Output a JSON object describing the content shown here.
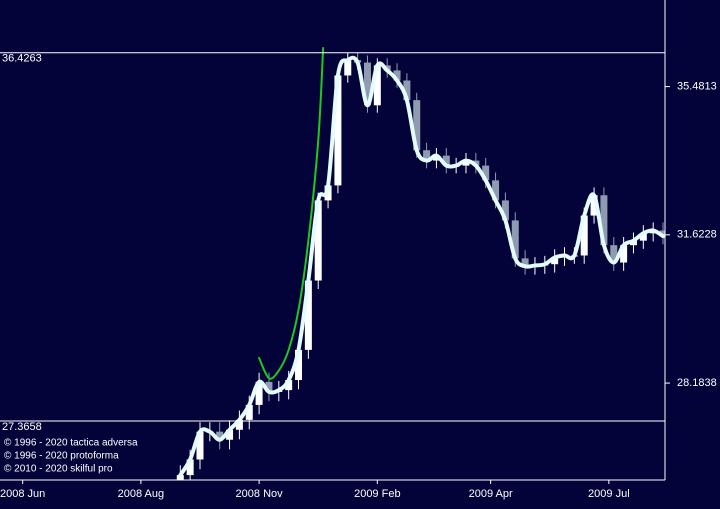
{
  "chart_data": {
    "type": "candlestick",
    "log_scale": true,
    "background": "#03033a",
    "up_color": "#ffffff",
    "down_color": "#8f9bb0",
    "ylim": [
      26.14,
      37.95
    ],
    "yticks": [
      35.4813,
      31.6228,
      28.1838
    ],
    "levels": [
      36.4263,
      27.3658
    ],
    "xlim": [
      -18.3,
      49.2
    ],
    "xticks": [
      {
        "value": -16,
        "label": "2008 Jun"
      },
      {
        "value": -4,
        "label": "2008 Aug"
      },
      {
        "value": 8,
        "label": "2008 Nov"
      },
      {
        "value": 20,
        "label": "2009 Feb"
      },
      {
        "value": 31.5,
        "label": "2009 Apr"
      },
      {
        "value": 43.5,
        "label": "2009 Jul"
      }
    ],
    "notes": [
      "© 1996 - 2020 tactica adversa",
      "© 1996 - 2020 protoforma",
      "© 2010 - 2020 skilful pro"
    ],
    "candles": {
      "open": [
        26.15,
        26.24,
        26.56,
        27.14,
        27.14,
        26.97,
        27.18,
        27.39,
        27.71,
        28.21,
        27.99,
        28.03,
        28.25,
        28.92,
        30.52,
        32.48,
        32.86,
        35.79,
        36.22,
        36.15,
        34.97,
        36.07,
        35.93,
        35.65,
        35.11,
        33.77,
        33.5,
        33.63,
        33.37,
        33.37,
        33.5,
        33.37,
        32.99,
        32.48,
        31.98,
        31.05,
        30.86,
        30.88,
        30.91,
        31.07,
        31.12,
        31.12,
        32.1,
        32.61,
        31.37,
        30.95,
        31.37,
        31.48,
        31.66,
        31.73
      ],
      "high": [
        26.44,
        26.76,
        27.34,
        27.34,
        27.34,
        27.38,
        27.59,
        27.91,
        28.41,
        28.41,
        28.23,
        28.45,
        29.12,
        30.72,
        32.68,
        33.06,
        35.99,
        36.43,
        36.42,
        36.35,
        36.27,
        36.27,
        36.13,
        35.85,
        35.31,
        33.97,
        33.83,
        33.83,
        33.57,
        33.7,
        33.7,
        33.57,
        33.19,
        32.68,
        32.18,
        31.25,
        31.08,
        31.11,
        31.27,
        31.32,
        31.32,
        32.3,
        32.81,
        32.81,
        31.57,
        31.57,
        31.68,
        31.86,
        31.93,
        31.93
      ],
      "low": [
        25.95,
        26.04,
        26.36,
        26.94,
        26.77,
        26.77,
        26.98,
        27.19,
        27.51,
        27.79,
        27.79,
        27.83,
        28.05,
        28.72,
        30.32,
        32.28,
        32.66,
        35.59,
        35.95,
        34.77,
        34.77,
        35.73,
        35.45,
        34.91,
        33.57,
        33.3,
        33.3,
        33.17,
        33.17,
        33.17,
        33.17,
        32.79,
        32.28,
        31.78,
        30.85,
        30.66,
        30.66,
        30.68,
        30.71,
        30.87,
        30.92,
        30.92,
        31.9,
        31.17,
        30.75,
        30.75,
        31.17,
        31.28,
        31.46,
        31.39
      ],
      "close": [
        26.24,
        26.56,
        27.14,
        27.14,
        26.97,
        27.18,
        27.39,
        27.71,
        28.21,
        27.99,
        28.03,
        28.25,
        28.92,
        30.52,
        32.48,
        32.86,
        35.79,
        36.22,
        36.15,
        34.97,
        36.07,
        35.93,
        35.65,
        35.11,
        33.77,
        33.5,
        33.63,
        33.37,
        33.37,
        33.5,
        33.37,
        32.99,
        32.48,
        31.98,
        31.05,
        30.86,
        30.88,
        30.91,
        31.07,
        31.12,
        31.12,
        32.1,
        32.61,
        31.37,
        30.95,
        31.37,
        31.48,
        31.66,
        31.73,
        31.59
      ]
    },
    "series": [
      {
        "color": "#e4fbff",
        "values": [
          26.24,
          26.56,
          27.14,
          27.14,
          26.97,
          27.18,
          27.39,
          27.71,
          28.21,
          27.99,
          28.03,
          28.25,
          28.92,
          30.52,
          32.48,
          32.86,
          35.79,
          36.22,
          36.15,
          34.97,
          36.07,
          35.93,
          35.65,
          35.11,
          33.77,
          33.5,
          33.63,
          33.37,
          33.37,
          33.5,
          33.37,
          32.99,
          32.48,
          31.98,
          31.05,
          30.86,
          30.88,
          30.91,
          31.07,
          31.12,
          31.12,
          32.1,
          32.61,
          31.37,
          30.95,
          31.37,
          31.48,
          31.66,
          31.73,
          31.59
        ]
      },
      {
        "color": "#1ec81e",
        "x": [
          8,
          9,
          10,
          11,
          12,
          13,
          14,
          14.5
        ],
        "values": [
          28.74,
          28.29,
          28.46,
          28.92,
          29.83,
          31.48,
          34.02,
          36.56
        ]
      }
    ]
  }
}
